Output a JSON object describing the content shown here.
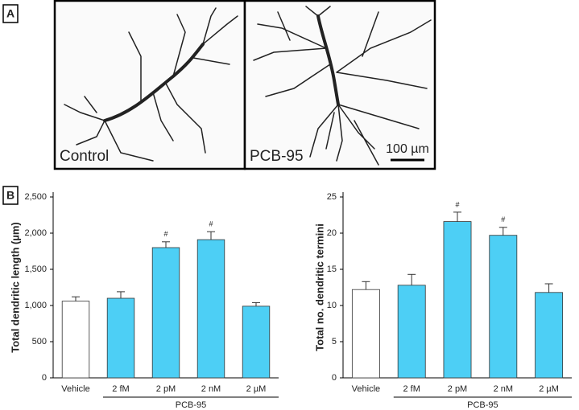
{
  "panel_a": {
    "label": "A",
    "images": [
      {
        "caption": "Control"
      },
      {
        "caption": "PCB-95",
        "scale_bar": "100 µm"
      }
    ]
  },
  "panel_b": {
    "label": "B"
  },
  "chart_data": [
    {
      "type": "bar",
      "y_label": "Total dendritic length (µm)",
      "categories": [
        "Vehicle",
        "2 fM",
        "2 pM",
        "2 nM",
        "2 µM"
      ],
      "values": [
        1060,
        1100,
        1800,
        1910,
        990
      ],
      "errors": [
        60,
        90,
        80,
        110,
        50
      ],
      "colors": [
        "#ffffff",
        "#4dcff5",
        "#4dcff5",
        "#4dcff5",
        "#4dcff5"
      ],
      "significance": [
        null,
        null,
        "#",
        "#",
        null
      ],
      "group_label": "PCB-95",
      "ylim": [
        0,
        2500
      ],
      "yticks": [
        0,
        500,
        {
          "value": 1000,
          "label": "1,000"
        },
        {
          "value": 1500,
          "label": "1,500"
        },
        {
          "value": 2000,
          "label": "2,000"
        },
        {
          "value": 2500,
          "label": "2,500"
        }
      ]
    },
    {
      "type": "bar",
      "y_label": "Total no. dendritic termini",
      "categories": [
        "Vehicle",
        "2 fM",
        "2 pM",
        "2 nM",
        "2 µM"
      ],
      "values": [
        12.2,
        12.8,
        21.6,
        19.7,
        11.8
      ],
      "errors": [
        1.1,
        1.5,
        1.3,
        1.1,
        1.2
      ],
      "colors": [
        "#ffffff",
        "#4dcff5",
        "#4dcff5",
        "#4dcff5",
        "#4dcff5"
      ],
      "significance": [
        null,
        null,
        "#",
        "#",
        null
      ],
      "group_label": "PCB-95",
      "ylim": [
        0,
        25
      ],
      "yticks": [
        0,
        5,
        10,
        15,
        20,
        25
      ]
    }
  ]
}
